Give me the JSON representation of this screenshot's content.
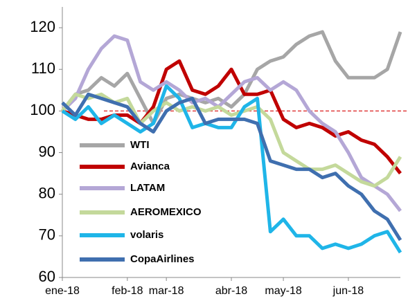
{
  "chart_data": {
    "type": "line",
    "categories": [
      "ene-18",
      null,
      null,
      null,
      null,
      "feb-18",
      null,
      null,
      "mar-18",
      null,
      null,
      null,
      null,
      "abr-18",
      null,
      null,
      null,
      "may-18",
      null,
      null,
      null,
      null,
      "jun-18",
      null,
      null,
      null,
      null
    ],
    "series": [
      {
        "name": "WTI",
        "color": "#a6a6a6",
        "values": [
          100,
          104,
          105,
          108,
          106,
          109,
          103,
          97,
          103,
          104,
          103,
          102,
          103,
          101,
          104,
          110,
          112,
          113,
          116,
          118,
          119,
          112,
          108,
          108,
          108,
          110,
          119
        ]
      },
      {
        "name": "Avianca",
        "color": "#c00000",
        "values": [
          100,
          99,
          98,
          98,
          99,
          99,
          97,
          101,
          110,
          112,
          105,
          104,
          106,
          110,
          104,
          104,
          105,
          98,
          96,
          97,
          96,
          94,
          95,
          93,
          92,
          89,
          85
        ]
      },
      {
        "name": "LATAM",
        "color": "#b4a7d6",
        "values": [
          100,
          103,
          110,
          115,
          118,
          117,
          107,
          105,
          107,
          105,
          102,
          103,
          101,
          104,
          107,
          108,
          105,
          107,
          105,
          100,
          97,
          95,
          90,
          84,
          82,
          80,
          76
        ]
      },
      {
        "name": "AEROMEXICO",
        "color": "#c4d99b",
        "values": [
          100,
          104,
          103,
          104,
          102,
          103,
          97,
          100,
          102,
          100,
          101,
          100,
          101,
          99,
          100,
          101,
          98,
          90,
          88,
          86,
          86,
          87,
          85,
          83,
          82,
          84,
          89
        ]
      },
      {
        "name": "volaris",
        "color": "#1fb5e8",
        "values": [
          100,
          98,
          101,
          97,
          99,
          97,
          95,
          97,
          106,
          103,
          96,
          97,
          96,
          96,
          101,
          103,
          71,
          74,
          70,
          70,
          67,
          68,
          67,
          68,
          70,
          71,
          66
        ]
      },
      {
        "name": "CopaAirlines",
        "color": "#3f6faf",
        "values": [
          102,
          99,
          104,
          103,
          102,
          101,
          97,
          95,
          100,
          102,
          103,
          97,
          98,
          98,
          98,
          97,
          88,
          87,
          86,
          86,
          84,
          85,
          82,
          80,
          76,
          74,
          69
        ]
      }
    ],
    "ylim": [
      60,
      125
    ],
    "yticks": [
      60,
      70,
      80,
      90,
      100,
      110,
      120
    ],
    "reference_line": {
      "value": 100,
      "color": "#e03c3c"
    },
    "legend": "lower-left"
  }
}
